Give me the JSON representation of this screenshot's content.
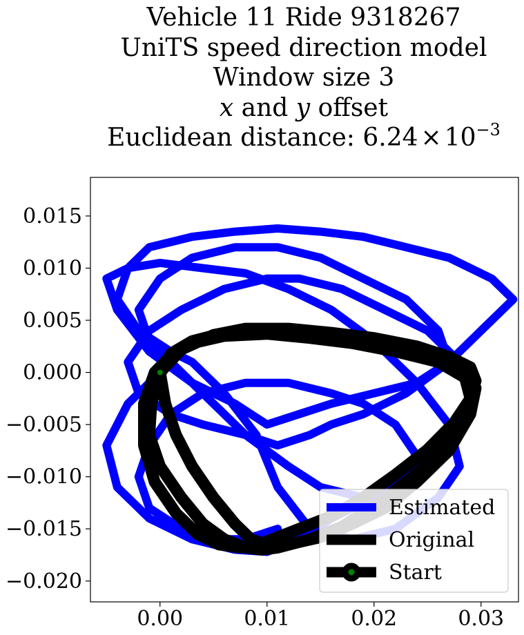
{
  "chart_data": {
    "type": "line",
    "title_lines": [
      "Vehicle 11 Ride 9318267",
      "UniTS speed direction model",
      "Window size 3",
      "x and y offset",
      "Euclidean distance: 6.24 × 10⁻³"
    ],
    "title_math": {
      "var_x": "x",
      "and_text": " and ",
      "var_y": "y",
      "offset_text": " offset",
      "distance_prefix": "Euclidean distance: ",
      "mantissa": "6.24",
      "times": "×",
      "base": "10",
      "exponent": "−3"
    },
    "xlabel": "",
    "ylabel": "",
    "xlim": [
      -0.0065,
      0.0335
    ],
    "ylim": [
      -0.022,
      0.0187
    ],
    "x_ticks": [
      0.0,
      0.01,
      0.02,
      0.03
    ],
    "x_tick_labels": [
      "0.00",
      "0.01",
      "0.02",
      "0.03"
    ],
    "y_ticks": [
      0.015,
      0.01,
      0.005,
      0.0,
      -0.005,
      -0.01,
      -0.015,
      -0.02
    ],
    "y_tick_labels": [
      "0.015",
      "0.010",
      "0.005",
      "0.000",
      "−0.005",
      "−0.010",
      "−0.015",
      "−0.020"
    ],
    "grid": false,
    "legend_position": "lower right",
    "series": [
      {
        "name": "Estimated",
        "color": "#0000ff",
        "x": [
          0.0,
          -0.003,
          -0.005,
          -0.004,
          -0.001,
          0.003,
          0.007,
          0.01,
          0.013,
          0.016,
          0.02,
          0.024,
          0.027,
          0.029,
          0.028,
          0.025,
          0.021,
          0.017,
          0.013,
          0.01,
          0.006,
          0.002,
          -0.001,
          -0.003,
          -0.002,
          0.001,
          0.004,
          0.008,
          0.011,
          0.014,
          0.016,
          0.019,
          0.023,
          0.027,
          0.03,
          0.032,
          0.033,
          0.031,
          0.027,
          0.023,
          0.019,
          0.015,
          0.011,
          0.007,
          0.003,
          -0.001,
          -0.003,
          -0.004,
          -0.002,
          0.001,
          0.003,
          0.006,
          0.009,
          0.011,
          0.014,
          0.018,
          0.022,
          0.026,
          0.028,
          0.027,
          0.024,
          0.02,
          0.016,
          0.012,
          0.008,
          0.004,
          0.0,
          -0.003,
          -0.005,
          -0.004,
          -0.001,
          0.003,
          0.007,
          0.01,
          0.013,
          0.016,
          0.02,
          0.024,
          0.027,
          0.026,
          0.023,
          0.019,
          0.015,
          0.011,
          0.007,
          0.003,
          0.0,
          -0.002,
          -0.001,
          0.002,
          0.005,
          0.008,
          0.012,
          0.015,
          0.019,
          0.022,
          0.024,
          0.022,
          0.019,
          0.016,
          0.012,
          0.008,
          0.004,
          0.001,
          -0.001,
          -0.002,
          -0.001,
          0.002,
          0.005,
          0.008,
          0.011
        ],
        "y": [
          0.0,
          -0.003,
          -0.007,
          -0.011,
          -0.014,
          -0.016,
          -0.017,
          -0.0172,
          -0.016,
          -0.014,
          -0.012,
          -0.009,
          -0.006,
          -0.003,
          0.001,
          0.004,
          0.006,
          0.008,
          0.009,
          0.009,
          0.008,
          0.006,
          0.004,
          0.001,
          -0.002,
          -0.004,
          -0.005,
          -0.006,
          -0.007,
          -0.006,
          -0.005,
          -0.004,
          -0.002,
          0.001,
          0.004,
          0.006,
          0.007,
          0.009,
          0.011,
          0.012,
          0.013,
          0.0135,
          0.0138,
          0.0135,
          0.013,
          0.012,
          0.01,
          0.007,
          0.004,
          0.002,
          0.001,
          -0.002,
          -0.006,
          -0.011,
          -0.015,
          -0.016,
          -0.015,
          -0.012,
          -0.009,
          -0.005,
          -0.001,
          0.003,
          0.006,
          0.008,
          0.0095,
          0.01,
          0.0105,
          0.01,
          0.009,
          0.006,
          0.002,
          -0.001,
          -0.003,
          -0.005,
          -0.004,
          -0.003,
          -0.002,
          -0.001,
          0.001,
          0.004,
          0.007,
          0.009,
          0.011,
          0.012,
          0.012,
          0.011,
          0.009,
          0.006,
          0.003,
          0.0,
          -0.003,
          -0.006,
          -0.009,
          -0.011,
          -0.012,
          -0.011,
          -0.008,
          -0.005,
          -0.003,
          -0.002,
          -0.001,
          -0.001,
          -0.002,
          -0.004,
          -0.007,
          -0.01,
          -0.013,
          -0.015,
          -0.016,
          -0.016,
          -0.015
        ]
      },
      {
        "name": "Original",
        "color": "#000000",
        "x": [
          0.0,
          0.0005,
          0.0015,
          0.003,
          0.005,
          0.007,
          0.0085,
          0.01,
          0.012,
          0.015,
          0.018,
          0.021,
          0.024,
          0.027,
          0.029,
          0.0295,
          0.0285,
          0.026,
          0.022,
          0.018,
          0.014,
          0.01,
          0.006,
          0.003,
          0.001,
          0.0,
          -0.0008,
          -0.001,
          0.0,
          0.002,
          0.004,
          0.006,
          0.008,
          0.0095,
          0.011,
          0.014,
          0.017,
          0.02,
          0.023,
          0.026,
          0.028,
          0.029,
          0.0285,
          0.026,
          0.022,
          0.018,
          0.014,
          0.01,
          0.006,
          0.003,
          0.001,
          -0.0005,
          -0.0015,
          -0.0015,
          -0.0005,
          0.0015,
          0.0035,
          0.0055,
          0.0075,
          0.009,
          0.0105,
          0.013,
          0.016,
          0.019,
          0.022,
          0.025,
          0.0275,
          0.029,
          0.0295,
          0.029,
          0.027,
          0.024,
          0.02,
          0.016,
          0.012,
          0.008,
          0.005,
          0.002,
          0.0
        ],
        "y": [
          0.0,
          -0.003,
          -0.006,
          -0.009,
          -0.012,
          -0.0145,
          -0.016,
          -0.0165,
          -0.0165,
          -0.0158,
          -0.0145,
          -0.013,
          -0.0105,
          -0.0075,
          -0.004,
          -0.0015,
          0.0,
          0.0015,
          0.0025,
          0.003,
          0.0035,
          0.004,
          0.0038,
          0.003,
          0.0018,
          0.0,
          -0.003,
          -0.006,
          -0.009,
          -0.012,
          -0.0145,
          -0.016,
          -0.0168,
          -0.017,
          -0.0168,
          -0.016,
          -0.0148,
          -0.0128,
          -0.0105,
          -0.008,
          -0.005,
          -0.0025,
          -0.0005,
          0.001,
          0.002,
          0.0028,
          0.0033,
          0.0037,
          0.0035,
          0.0028,
          0.0016,
          0.0,
          -0.003,
          -0.007,
          -0.0105,
          -0.0135,
          -0.0155,
          -0.0165,
          -0.0168,
          -0.0166,
          -0.016,
          -0.015,
          -0.0138,
          -0.012,
          -0.0098,
          -0.0074,
          -0.0048,
          -0.0025,
          -0.0008,
          0.0005,
          0.0015,
          0.0025,
          0.0033,
          0.0038,
          0.0042,
          0.0042,
          0.0036,
          0.0022,
          0.0
        ]
      },
      {
        "name": "Start",
        "color": "#008000",
        "edge_color": "#000000",
        "x": [
          0.0
        ],
        "y": [
          0.0
        ]
      }
    ],
    "legend": [
      {
        "label": "Estimated",
        "color": "#0000ff",
        "marker": "line"
      },
      {
        "label": "Original",
        "color": "#000000",
        "marker": "line"
      },
      {
        "label": "Start",
        "color": "#000000",
        "marker": "line-circle",
        "marker_face": "#008000"
      }
    ]
  }
}
